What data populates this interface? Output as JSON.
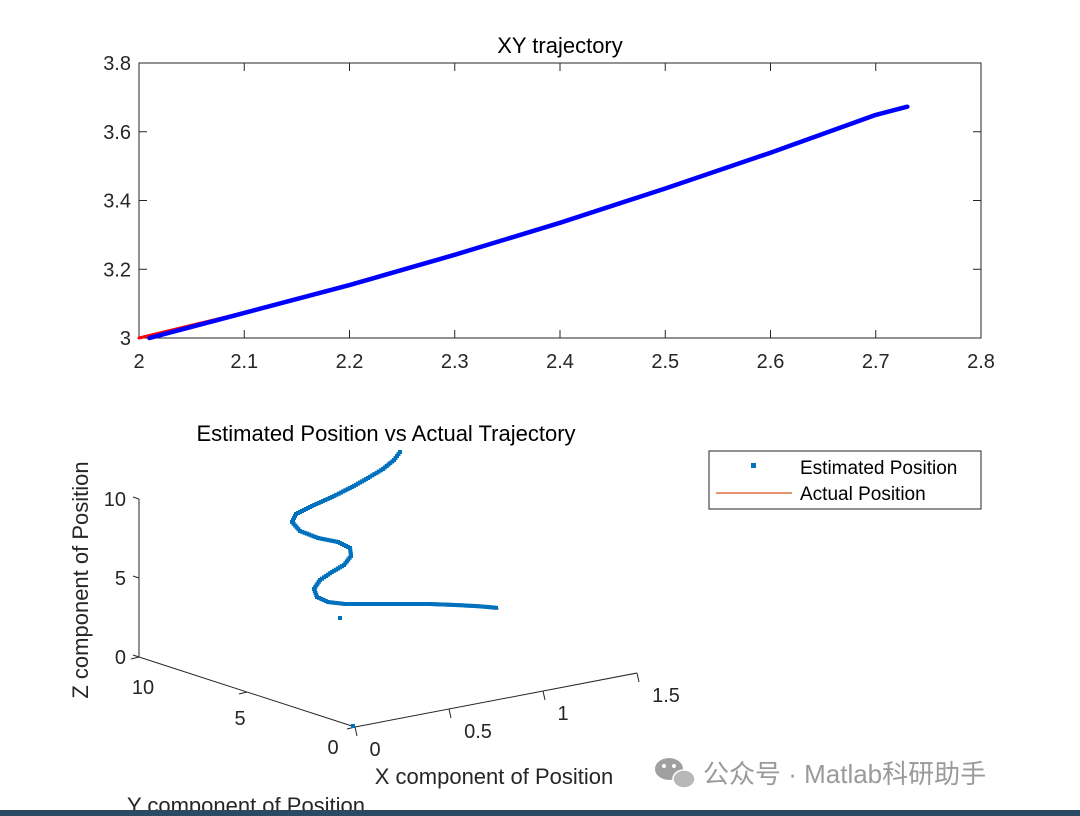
{
  "chart_data": [
    {
      "type": "line",
      "title": "XY trajectory",
      "xlabel": "",
      "ylabel": "",
      "xlim": [
        2,
        2.8
      ],
      "ylim": [
        3,
        3.8
      ],
      "xticks": [
        "2",
        "2.1",
        "2.2",
        "2.3",
        "2.4",
        "2.5",
        "2.6",
        "2.7",
        "2.8"
      ],
      "yticks": [
        "3",
        "3.2",
        "3.4",
        "3.6",
        "3.8"
      ],
      "series": [
        {
          "color": "#ff0000",
          "x": [
            2.0,
            2.1,
            2.2,
            2.3,
            2.4,
            2.5,
            2.6,
            2.7,
            2.73
          ],
          "y": [
            3.0,
            3.074,
            3.155,
            3.243,
            3.336,
            3.436,
            3.54,
            3.65,
            3.673
          ]
        },
        {
          "color": "#0000ff",
          "x": [
            2.01,
            2.1,
            2.2,
            2.3,
            2.4,
            2.5,
            2.6,
            2.7,
            2.73
          ],
          "y": [
            3.0,
            3.073,
            3.154,
            3.242,
            3.335,
            3.435,
            3.539,
            3.649,
            3.673
          ]
        }
      ]
    },
    {
      "type": "line3d",
      "title": "Estimated Position vs Actual Trajectory",
      "xlabel": "X component of Position",
      "ylabel": "Y component of Position",
      "zlabel": "Z component of Position",
      "zticks": [
        "0",
        "5",
        "10"
      ],
      "yticks": [
        "0",
        "5",
        "10"
      ],
      "xticks": [
        "0",
        "0.5",
        "1",
        "1.5"
      ],
      "legend": {
        "position": "top-right",
        "entries": [
          "Estimated Position",
          "Actual Position"
        ]
      },
      "estimated_color": "#0072bd",
      "actual_color": "#d95319"
    }
  ],
  "watermark": {
    "text": "公众号 · Matlab科研助手"
  }
}
